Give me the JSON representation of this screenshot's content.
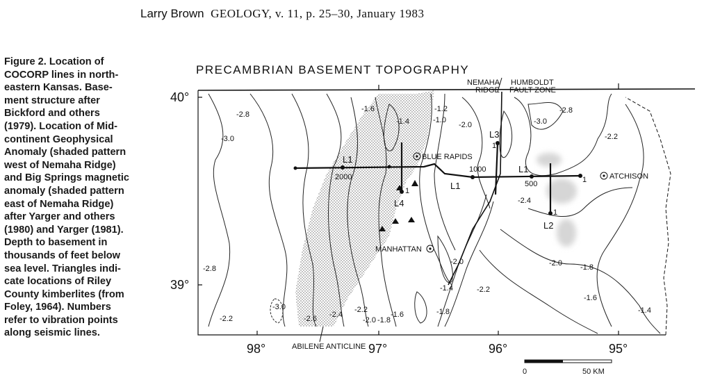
{
  "header": {
    "author": "Larry Brown",
    "journal": "GEOLOGY, v. 11, p. 25–30, January 1983"
  },
  "caption": [
    "Figure 2. Location of",
    "COCORP lines in north-",
    "eastern Kansas. Base-",
    "ment structure after",
    "Bickford and others",
    "(1979). Location of Mid-",
    "continent Geophysical",
    "Anomaly (shaded pattern",
    "west of Nemaha Ridge)",
    "and Big Springs magnetic",
    "anomaly (shaded pattern",
    "east of Nemaha Ridge)",
    "after Yarger and others",
    "(1980) and Yarger (1981).",
    "Depth to basement in",
    "thousands of feet below",
    "sea level. Triangles indi-",
    "cate locations of Riley",
    "County kimberlites (from",
    "Foley, 1964). Numbers",
    "refer to vibration points",
    "along seismic lines."
  ],
  "map": {
    "title": "PRECAMBRIAN BASEMENT TOPOGRAPHY",
    "fault_label": [
      "NEMAHA",
      "RIDGE",
      "HUMBOLDT",
      "FAULT ZONE"
    ],
    "latitudes": [
      "40°",
      "39°"
    ],
    "longitudes": [
      "98°",
      "97°",
      "96°",
      "95°"
    ],
    "scale": {
      "start": "0",
      "end": "50 KM"
    },
    "towns": [
      "BLUE RAPIDS",
      "ATCHISON",
      "MANHATTAN"
    ],
    "features": [
      "ABILENE ANTICLINE"
    ],
    "seismic_lines": [
      "L1",
      "L1",
      "L1",
      "L2",
      "L3",
      "L4"
    ],
    "vibration_points": [
      "2000",
      "1000",
      "500",
      "1",
      "1",
      "1",
      "1"
    ],
    "contour_labels": [
      "-2.8",
      "-3.0",
      "-1.6",
      "-1.4",
      "-1.2",
      "-1.0",
      "-2.0",
      "-2.8",
      "-3.0",
      "-2.2",
      "-2.4",
      "-2.0",
      "-2.0",
      "-1.8",
      "-2.8",
      "-1.4",
      "-2.2",
      "-1.6",
      "-1.4",
      "-3.0",
      "-2.2",
      "-2.6",
      "-2.4",
      "-2.2",
      "-2.0",
      "-1.8",
      "-1.6",
      "-1.8"
    ],
    "colors": {
      "ink": "#111111",
      "stipple": "#777777",
      "magnetic_shade": "#d6d6d6"
    }
  }
}
